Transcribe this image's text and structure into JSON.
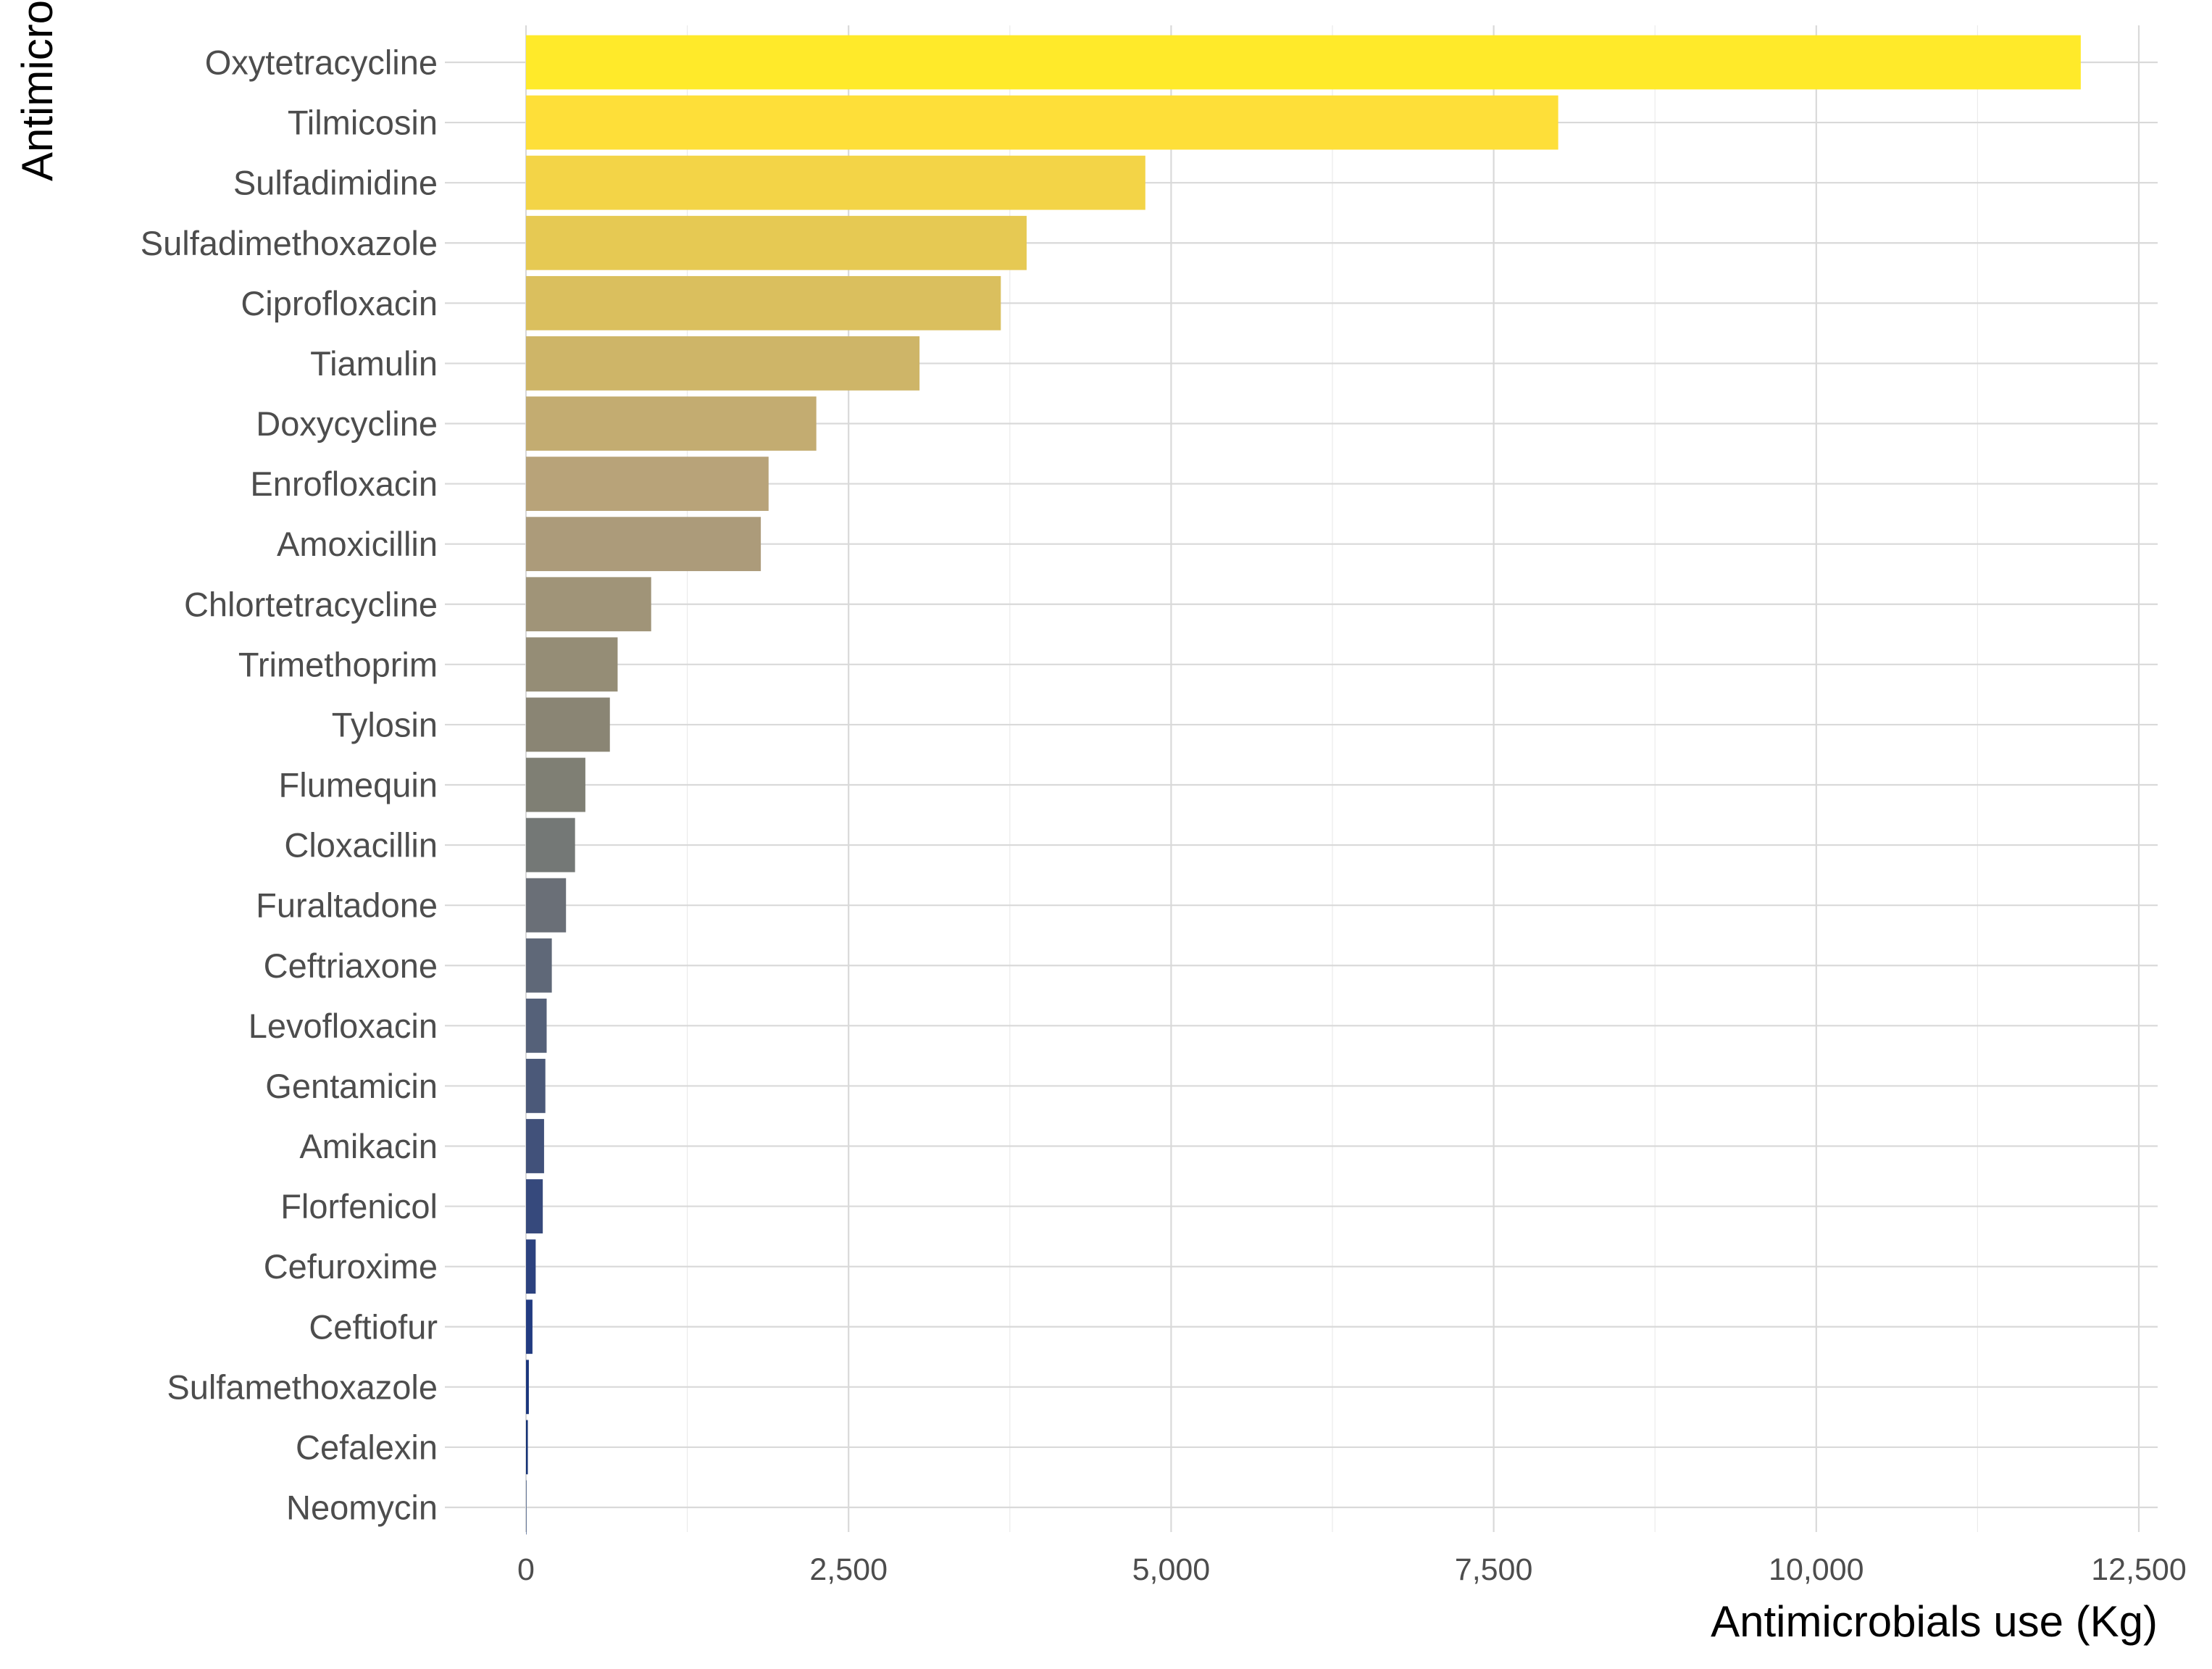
{
  "chart_data": {
    "type": "bar",
    "orientation": "horizontal",
    "xlabel": "Antimicrobials use (Kg)",
    "ylabel": "Antimicrobials",
    "xlim": [
      0,
      12500
    ],
    "xticks": [
      0,
      2500,
      5000,
      7500,
      10000,
      12500
    ],
    "xtick_labels": [
      "0",
      "2,500",
      "5,000",
      "7,500",
      "10,000",
      "12,500"
    ],
    "grid": true,
    "legend": "none",
    "color_scale": "cividis",
    "categories": [
      "Oxytetracycline",
      "Tilmicosin",
      "Sulfadimidine",
      "Sulfadimethoxazole",
      "Ciprofloxacin",
      "Tiamulin",
      "Doxycycline",
      "Enrofloxacin",
      "Amoxicillin",
      "Chlortetracycline",
      "Trimethoprim",
      "Tylosin",
      "Flumequin",
      "Cloxacillin",
      "Furaltadone",
      "Ceftriaxone",
      "Levofloxacin",
      "Gentamicin",
      "Amikacin",
      "Florfenicol",
      "Cefuroxime",
      "Ceftiofur",
      "Sulfamethoxazole",
      "Cefalexin",
      "Neomycin"
    ],
    "values": [
      12050,
      8000,
      4800,
      3880,
      3680,
      3050,
      2250,
      1880,
      1820,
      970,
      710,
      650,
      460,
      380,
      310,
      200,
      160,
      150,
      140,
      130,
      75,
      50,
      22,
      14,
      3
    ],
    "colors": [
      "#ffea2a",
      "#fedf39",
      "#f3d447",
      "#e6c953",
      "#dabf5e",
      "#ceb568",
      "#c3ac71",
      "#b8a379",
      "#ac9b7a",
      "#a09478",
      "#958d76",
      "#8a8574",
      "#7f7f74",
      "#747876",
      "#6a6f77",
      "#5f6878",
      "#556179",
      "#4b5979",
      "#41517a",
      "#36497c",
      "#2c427f",
      "#223b81",
      "#1a357c",
      "#122f72",
      "#0b2a66"
    ]
  }
}
